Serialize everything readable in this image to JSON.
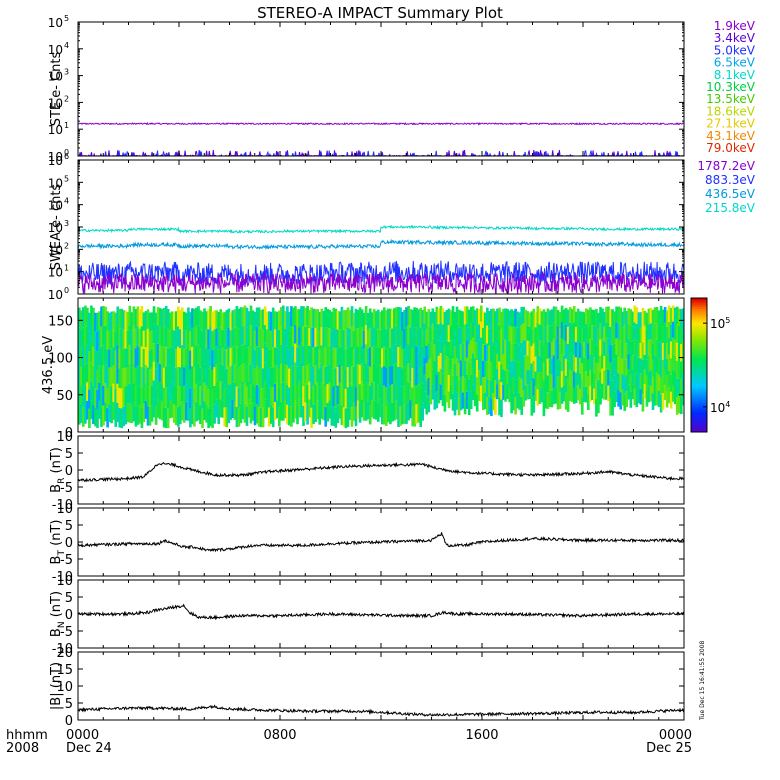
{
  "title": "STEREO-A IMPACT Summary Plot",
  "stamp": "Tue Dec 15 16:41:55 2008",
  "time_axis": {
    "header_top": "hhmm",
    "header_bottom": "2008",
    "ticks": [
      {
        "label": "0000",
        "date": "Dec 24",
        "hour": 0
      },
      {
        "label": "0800",
        "date": "",
        "hour": 8
      },
      {
        "label": "1600",
        "date": "",
        "hour": 16
      },
      {
        "label": "0000",
        "date": "Dec 25",
        "hour": 24
      }
    ],
    "range_hours": [
      0,
      24
    ]
  },
  "chart_data": [
    {
      "type": "line",
      "ylabel": "STE e- Cnts",
      "yscale": "log",
      "ylim": [
        1,
        100000
      ],
      "yticks": [
        {
          "v": 1,
          "e": "0"
        },
        {
          "v": 10,
          "e": "1"
        },
        {
          "v": 100,
          "e": "2"
        },
        {
          "v": 1000,
          "e": "3"
        },
        {
          "v": 10000,
          "e": "4"
        },
        {
          "v": 100000,
          "e": "5"
        }
      ],
      "legend": [
        {
          "name": "1.9keV",
          "color": "#8b00cc"
        },
        {
          "name": "3.4keV",
          "color": "#5a00d6"
        },
        {
          "name": "5.0keV",
          "color": "#2030ff"
        },
        {
          "name": "6.5keV",
          "color": "#00a8e8"
        },
        {
          "name": "8.1keV",
          "color": "#00d8c8"
        },
        {
          "name": "10.3keV",
          "color": "#00cc44"
        },
        {
          "name": "13.5keV",
          "color": "#44cc00"
        },
        {
          "name": "18.6keV",
          "color": "#b8d800"
        },
        {
          "name": "27.1keV",
          "color": "#e8c800"
        },
        {
          "name": "43.1keV",
          "color": "#f08800"
        },
        {
          "name": "79.0keV",
          "color": "#e02800"
        }
      ],
      "series": [
        {
          "name": "1.9keV",
          "color": "#8b00cc",
          "mean": 16,
          "noise": 0.06
        },
        {
          "name": "3.4keV",
          "color": "#5a00d6",
          "mean": 1.05,
          "noise": 0.15
        },
        {
          "name": "5.0keV",
          "color": "#2030ff",
          "mean": 1.0,
          "noise": 0.2
        }
      ]
    },
    {
      "type": "line",
      "ylabel": "SWEA e- cnts",
      "yscale": "log",
      "ylim": [
        1,
        1000000
      ],
      "yticks": [
        {
          "v": 1,
          "e": "0"
        },
        {
          "v": 10,
          "e": "1"
        },
        {
          "v": 100,
          "e": "2"
        },
        {
          "v": 1000,
          "e": "3"
        },
        {
          "v": 10000,
          "e": "4"
        },
        {
          "v": 100000,
          "e": "5"
        },
        {
          "v": 1000000,
          "e": "6"
        }
      ],
      "legend": [
        {
          "name": "1787.2eV",
          "color": "#8b00cc"
        },
        {
          "name": "883.3eV",
          "color": "#2030ff"
        },
        {
          "name": "436.5eV",
          "color": "#0099dd"
        },
        {
          "name": "215.8eV",
          "color": "#00d8c8"
        }
      ],
      "series": [
        {
          "name": "215.8eV",
          "color": "#00d8c8",
          "base": [
            700,
            800,
            650,
            620,
            650,
            650,
            1000,
            950,
            900,
            850,
            800,
            800
          ],
          "noise": 0.05
        },
        {
          "name": "436.5eV",
          "color": "#0099dd",
          "base": [
            140,
            160,
            140,
            130,
            130,
            135,
            210,
            200,
            190,
            180,
            170,
            160
          ],
          "noise": 0.08
        },
        {
          "name": "883.3eV",
          "color": "#2030ff",
          "base": [
            8,
            9,
            8,
            8,
            8,
            9,
            10,
            10,
            9,
            9,
            9,
            9
          ],
          "noise": 0.5
        },
        {
          "name": "1787.2eV",
          "color": "#8b00cc",
          "base": [
            3,
            3,
            3,
            3,
            3,
            3,
            3,
            3,
            3,
            3,
            3,
            3
          ],
          "noise": 0.45
        }
      ]
    },
    {
      "type": "heatmap",
      "ylabel": "436.5 eV",
      "ylim": [
        0,
        180
      ],
      "yticks": [
        0,
        50,
        100,
        150
      ],
      "colorbar": {
        "scale": "log",
        "range": [
          5000,
          200000
        ],
        "ticks": [
          {
            "v": 10000,
            "e": "4"
          },
          {
            "v": 100000,
            "e": "5"
          }
        ]
      }
    },
    {
      "type": "line",
      "ylabel": "B",
      "ylabel_sub": "R",
      "ylabel_unit": "(nT)",
      "ylim": [
        -10,
        10
      ],
      "yticks": [
        -10,
        -5,
        0,
        5,
        10
      ],
      "series": [
        {
          "name": "",
          "color": "#000000",
          "keys": [
            [
              0,
              -3
            ],
            [
              2,
              -2.5
            ],
            [
              2.6,
              -2
            ],
            [
              2.9,
              0
            ],
            [
              3.2,
              2
            ],
            [
              3.8,
              1.5
            ],
            [
              4.5,
              0
            ],
            [
              5.5,
              -1.5
            ],
            [
              6.5,
              -1.5
            ],
            [
              7.5,
              -0.5
            ],
            [
              9.5,
              0.5
            ],
            [
              10.5,
              1
            ],
            [
              12.5,
              1.5
            ],
            [
              13.2,
              1.5
            ],
            [
              13.6,
              1.8
            ],
            [
              14.2,
              0.5
            ],
            [
              15,
              -0.5
            ],
            [
              16,
              -1
            ],
            [
              18,
              -1.5
            ],
            [
              20,
              -1
            ],
            [
              21,
              -0.5
            ],
            [
              22,
              -1.5
            ],
            [
              23.5,
              -2.5
            ],
            [
              24,
              -2.5
            ]
          ]
        }
      ]
    },
    {
      "type": "line",
      "ylabel": "B",
      "ylabel_sub": "T",
      "ylabel_unit": "(nT)",
      "ylim": [
        -10,
        10
      ],
      "yticks": [
        -10,
        -5,
        0,
        5,
        10
      ],
      "series": [
        {
          "name": "",
          "color": "#000000",
          "keys": [
            [
              0,
              -1
            ],
            [
              2,
              -0.5
            ],
            [
              3.2,
              -0.5
            ],
            [
              3.4,
              0.5
            ],
            [
              4.2,
              -1.5
            ],
            [
              4.6,
              -1.5
            ],
            [
              5.2,
              -2.5
            ],
            [
              6,
              -2
            ],
            [
              7,
              -1
            ],
            [
              9,
              -1
            ],
            [
              10,
              -0.5
            ],
            [
              12,
              0
            ],
            [
              14,
              0.5
            ],
            [
              14.4,
              2.5
            ],
            [
              14.6,
              -1
            ],
            [
              15.3,
              -1
            ],
            [
              16,
              0
            ],
            [
              18,
              1
            ],
            [
              20,
              0.5
            ],
            [
              22,
              0.5
            ],
            [
              24,
              0.5
            ]
          ]
        }
      ]
    },
    {
      "type": "line",
      "ylabel": "B",
      "ylabel_sub": "N",
      "ylabel_unit": "(nT)",
      "ylim": [
        -10,
        10
      ],
      "yticks": [
        -10,
        -5,
        0,
        5,
        10
      ],
      "series": [
        {
          "name": "",
          "color": "#000000",
          "keys": [
            [
              0,
              0
            ],
            [
              2,
              0
            ],
            [
              2.8,
              0.5
            ],
            [
              3,
              1
            ],
            [
              3.8,
              2
            ],
            [
              4.2,
              2.5
            ],
            [
              4.4,
              0.5
            ],
            [
              4.8,
              -1
            ],
            [
              5.5,
              -1
            ],
            [
              6.5,
              -0.5
            ],
            [
              8,
              -0.5
            ],
            [
              10,
              0
            ],
            [
              13,
              -0.5
            ],
            [
              14,
              -0.5
            ],
            [
              14.5,
              0.5
            ],
            [
              15,
              0
            ],
            [
              17,
              0
            ],
            [
              20,
              -0.5
            ],
            [
              22,
              0
            ],
            [
              24,
              0
            ]
          ]
        }
      ]
    },
    {
      "type": "line",
      "ylabel": "|B|",
      "ylabel_sub": "",
      "ylabel_unit": "(nT)",
      "ylim": [
        0,
        20
      ],
      "yticks": [
        0,
        5,
        10,
        15,
        20
      ],
      "series": [
        {
          "name": "",
          "color": "#000000",
          "keys": [
            [
              0,
              3
            ],
            [
              2,
              3.5
            ],
            [
              3.2,
              3.5
            ],
            [
              4.5,
              3.2
            ],
            [
              5.3,
              4
            ],
            [
              6,
              3.3
            ],
            [
              7,
              3
            ],
            [
              9,
              2.6
            ],
            [
              11,
              2.6
            ],
            [
              12,
              2.3
            ],
            [
              13,
              1.8
            ],
            [
              14,
              1.5
            ],
            [
              15,
              1.6
            ],
            [
              17,
              1.8
            ],
            [
              19,
              2
            ],
            [
              20.5,
              2.3
            ],
            [
              22,
              2.2
            ],
            [
              24,
              3
            ]
          ]
        }
      ]
    }
  ]
}
